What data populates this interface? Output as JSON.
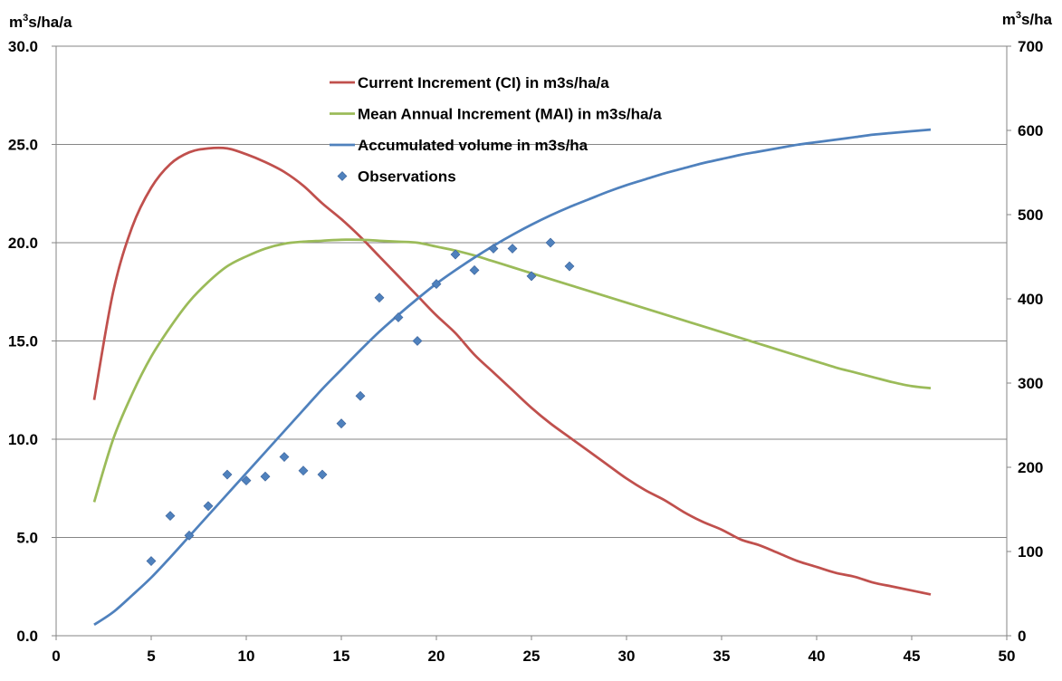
{
  "chart_data": {
    "type": "line",
    "x_axis": {
      "min": 0,
      "max": 50,
      "ticks": [
        "0",
        "5",
        "10",
        "15",
        "20",
        "25",
        "30",
        "35",
        "40",
        "45",
        "50"
      ]
    },
    "y_left": {
      "unit": "m³s/ha/a",
      "min": 0,
      "max": 30,
      "ticks": [
        "0.0",
        "5.0",
        "10.0",
        "15.0",
        "20.0",
        "25.0",
        "30.0"
      ]
    },
    "y_right": {
      "unit": "m³s/ha",
      "min": 0,
      "max": 700,
      "ticks": [
        "0",
        "100",
        "200",
        "300",
        "400",
        "500",
        "600",
        "700"
      ]
    },
    "grid": "horizontal",
    "legend_position": "top-center",
    "series": [
      {
        "name": "Current Increment (CI) in m3s/ha/a",
        "axis": "left",
        "color": "#c0504d",
        "x": [
          2,
          3,
          4,
          5,
          6,
          7,
          8,
          9,
          10,
          11,
          12,
          13,
          14,
          15,
          16,
          17,
          18,
          19,
          20,
          21,
          22,
          23,
          24,
          25,
          26,
          27,
          28,
          29,
          30,
          31,
          32,
          33,
          34,
          35,
          36,
          37,
          38,
          39,
          40,
          41,
          42,
          43,
          44,
          45,
          46
        ],
        "y": [
          12.0,
          17.5,
          20.8,
          22.8,
          24.0,
          24.6,
          24.8,
          24.8,
          24.5,
          24.1,
          23.6,
          22.9,
          22.0,
          21.2,
          20.3,
          19.3,
          18.3,
          17.3,
          16.3,
          15.4,
          14.3,
          13.4,
          12.5,
          11.6,
          10.8,
          10.1,
          9.4,
          8.7,
          8.0,
          7.4,
          6.9,
          6.3,
          5.8,
          5.4,
          4.9,
          4.6,
          4.2,
          3.8,
          3.5,
          3.2,
          3.0,
          2.7,
          2.5,
          2.3,
          2.1
        ]
      },
      {
        "name": "Mean Annual Increment (MAI) in m3s/ha/a",
        "axis": "left",
        "color": "#9bbb59",
        "x": [
          2,
          3,
          4,
          5,
          6,
          7,
          8,
          9,
          10,
          11,
          12,
          13,
          14,
          15,
          16,
          17,
          18,
          19,
          20,
          21,
          22,
          23,
          24,
          25,
          26,
          27,
          28,
          29,
          30,
          31,
          32,
          33,
          34,
          35,
          36,
          37,
          38,
          39,
          40,
          41,
          42,
          43,
          44,
          45,
          46
        ],
        "y": [
          6.8,
          10.0,
          12.3,
          14.2,
          15.7,
          17.0,
          18.0,
          18.8,
          19.3,
          19.7,
          19.95,
          20.05,
          20.1,
          20.15,
          20.15,
          20.1,
          20.05,
          20.0,
          19.8,
          19.6,
          19.35,
          19.05,
          18.75,
          18.45,
          18.15,
          17.85,
          17.55,
          17.25,
          16.95,
          16.65,
          16.35,
          16.05,
          15.75,
          15.45,
          15.15,
          14.85,
          14.55,
          14.25,
          13.95,
          13.65,
          13.4,
          13.15,
          12.9,
          12.7,
          12.6
        ]
      },
      {
        "name": "Accumulated volume in m3s/ha",
        "axis": "right",
        "color": "#4f81bd",
        "x": [
          2,
          3,
          4,
          5,
          6,
          7,
          8,
          9,
          10,
          11,
          12,
          13,
          14,
          15,
          16,
          17,
          18,
          19,
          20,
          21,
          22,
          23,
          24,
          25,
          26,
          27,
          28,
          29,
          30,
          31,
          32,
          33,
          34,
          35,
          36,
          37,
          38,
          39,
          40,
          41,
          42,
          43,
          44,
          45,
          46
        ],
        "y": [
          13,
          28,
          48,
          69,
          93,
          118,
          143,
          168,
          193,
          218,
          243,
          268,
          293,
          316,
          339,
          361,
          381,
          400,
          418,
          434,
          449,
          463,
          476,
          488,
          499,
          509,
          518,
          527,
          535,
          542,
          549,
          555,
          561,
          566,
          571,
          575,
          579,
          583,
          586,
          589,
          592,
          595,
          597,
          599,
          601
        ]
      },
      {
        "name": "Observations",
        "axis": "left",
        "type": "scatter",
        "color": "#4f81bd",
        "x": [
          5,
          6,
          7,
          8,
          9,
          10,
          11,
          12,
          13,
          14,
          15,
          16,
          17,
          18,
          19,
          20,
          21,
          22,
          23,
          24,
          25,
          26,
          27
        ],
        "y": [
          3.8,
          6.1,
          5.1,
          6.6,
          8.2,
          7.9,
          8.1,
          9.1,
          8.4,
          8.2,
          10.8,
          12.2,
          17.2,
          16.2,
          15.0,
          17.9,
          19.4,
          18.6,
          19.7,
          19.7,
          18.3,
          20.0,
          18.8
        ]
      }
    ]
  }
}
